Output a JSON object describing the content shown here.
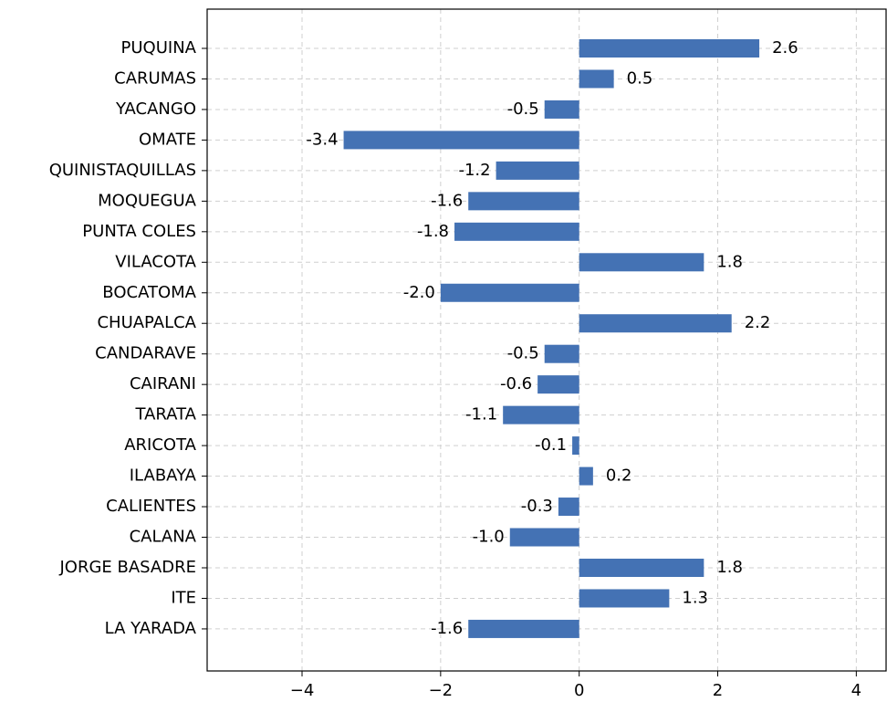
{
  "chart_data": {
    "type": "barh",
    "categories": [
      "PUQUINA",
      "CARUMAS",
      "YACANGO",
      "OMATE",
      "QUINISTAQUILLAS",
      "MOQUEGUA",
      "PUNTA COLES",
      "VILACOTA",
      "BOCATOMA",
      "CHUAPALCA",
      "CANDARAVE",
      "CAIRANI",
      "TARATA",
      "ARICOTA",
      "ILABAYA",
      "CALIENTES",
      "CALANA",
      "JORGE BASADRE",
      "ITE",
      "LA YARADA"
    ],
    "values": [
      2.6,
      0.5,
      -0.5,
      -3.4,
      -1.2,
      -1.6,
      -1.8,
      1.8,
      -2.0,
      2.2,
      -0.5,
      -0.6,
      -1.1,
      -0.1,
      0.2,
      -0.3,
      -1.0,
      1.8,
      1.3,
      -1.6
    ],
    "value_labels": [
      "2.6",
      "0.5",
      "-0.5",
      "-3.4",
      "-1.2",
      "-1.6",
      "-1.8",
      "1.8",
      "-2.0",
      "2.2",
      "-0.5",
      "-0.6",
      "-1.1",
      "-0.1",
      "0.2",
      "-0.3",
      "-1.0",
      "1.8",
      "1.3",
      "-1.6"
    ],
    "color": "#4472b4",
    "xlim": [
      -5.37,
      4.43
    ],
    "xticks": [
      {
        "value": -4,
        "label": "−4"
      },
      {
        "value": -2,
        "label": "−2"
      },
      0,
      2,
      4
    ],
    "grid": true
  }
}
